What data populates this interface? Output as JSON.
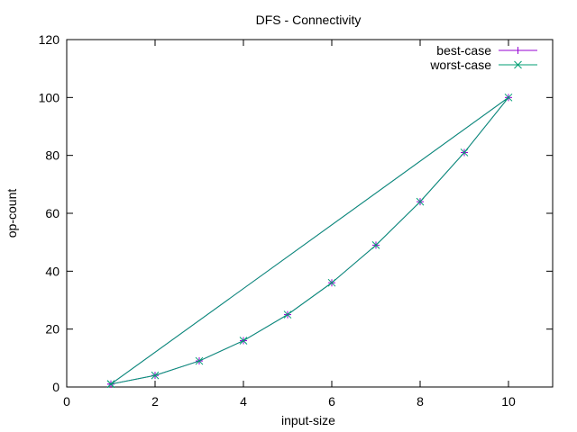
{
  "chart_data": {
    "type": "line",
    "title": "DFS - Connectivity",
    "xlabel": "input-size",
    "ylabel": "op-count",
    "xlim": [
      0,
      11
    ],
    "ylim": [
      0,
      120
    ],
    "xticks": [
      0,
      2,
      4,
      6,
      8,
      10
    ],
    "yticks": [
      0,
      20,
      40,
      60,
      80,
      100,
      120
    ],
    "grid": false,
    "legend_position": "top-right",
    "series": [
      {
        "name": "best-case",
        "color": "#9400d3",
        "marker": "plus",
        "x": [
          1,
          2,
          3,
          4,
          5,
          6,
          7,
          8,
          9,
          10,
          1
        ],
        "y": [
          1,
          4,
          9,
          16,
          25,
          36,
          49,
          64,
          81,
          100,
          1
        ]
      },
      {
        "name": "worst-case",
        "color": "#009e73",
        "marker": "cross",
        "x": [
          1,
          2,
          3,
          4,
          5,
          6,
          7,
          8,
          9,
          10,
          1
        ],
        "y": [
          1,
          4,
          9,
          16,
          25,
          36,
          49,
          64,
          81,
          100,
          1
        ]
      }
    ]
  }
}
